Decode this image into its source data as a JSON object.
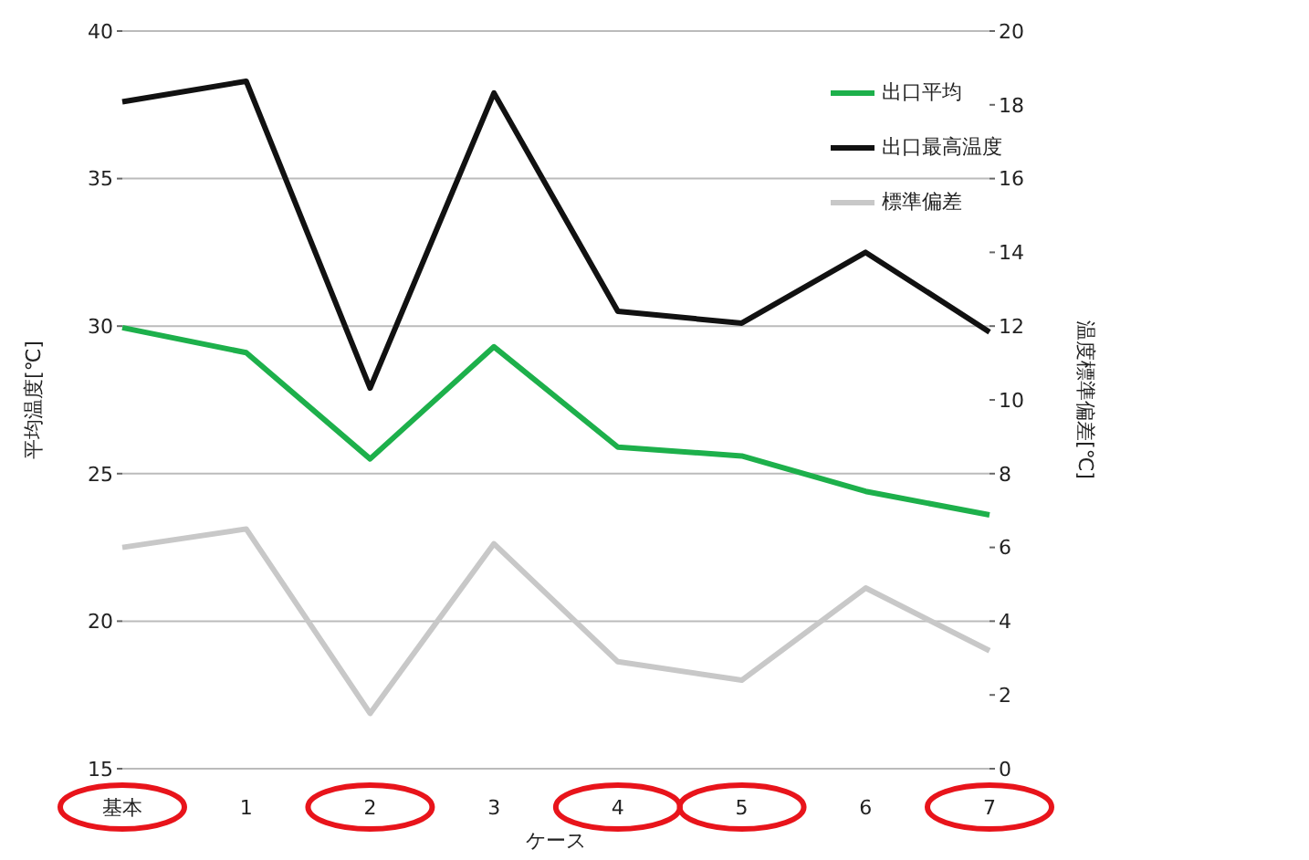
{
  "chart_data": {
    "type": "line",
    "xlabel": "ケース",
    "ylabel": "平均温度[℃]",
    "y2label": "温度標準偏差[℃]",
    "categories": [
      "基本",
      "1",
      "2",
      "3",
      "4",
      "5",
      "6",
      "7"
    ],
    "series": [
      {
        "name": "出口平均",
        "color": "#1db04b",
        "values": [
          29.95,
          29.1,
          25.5,
          29.3,
          25.9,
          25.6,
          24.4,
          23.6
        ]
      },
      {
        "name": "出口最高温度",
        "color": "#111111",
        "values": [
          37.6,
          38.3,
          27.9,
          37.9,
          30.5,
          30.1,
          32.5,
          29.8
        ]
      },
      {
        "name": "標準偏差",
        "color": "#c8c8c8",
        "axis": "y2",
        "values": [
          6.0,
          6.5,
          1.5,
          6.1,
          2.9,
          2.4,
          4.9,
          3.2
        ]
      }
    ],
    "ylim": [
      15,
      40
    ],
    "yticks": [
      15,
      20,
      25,
      30,
      35,
      40
    ],
    "y2lim": [
      0,
      20
    ],
    "y2ticks": [
      0,
      2,
      4,
      6,
      8,
      10,
      12,
      14,
      16,
      18,
      20
    ],
    "grid": "y",
    "legend": "top right",
    "marker": "none",
    "line_style": "solid"
  }
}
